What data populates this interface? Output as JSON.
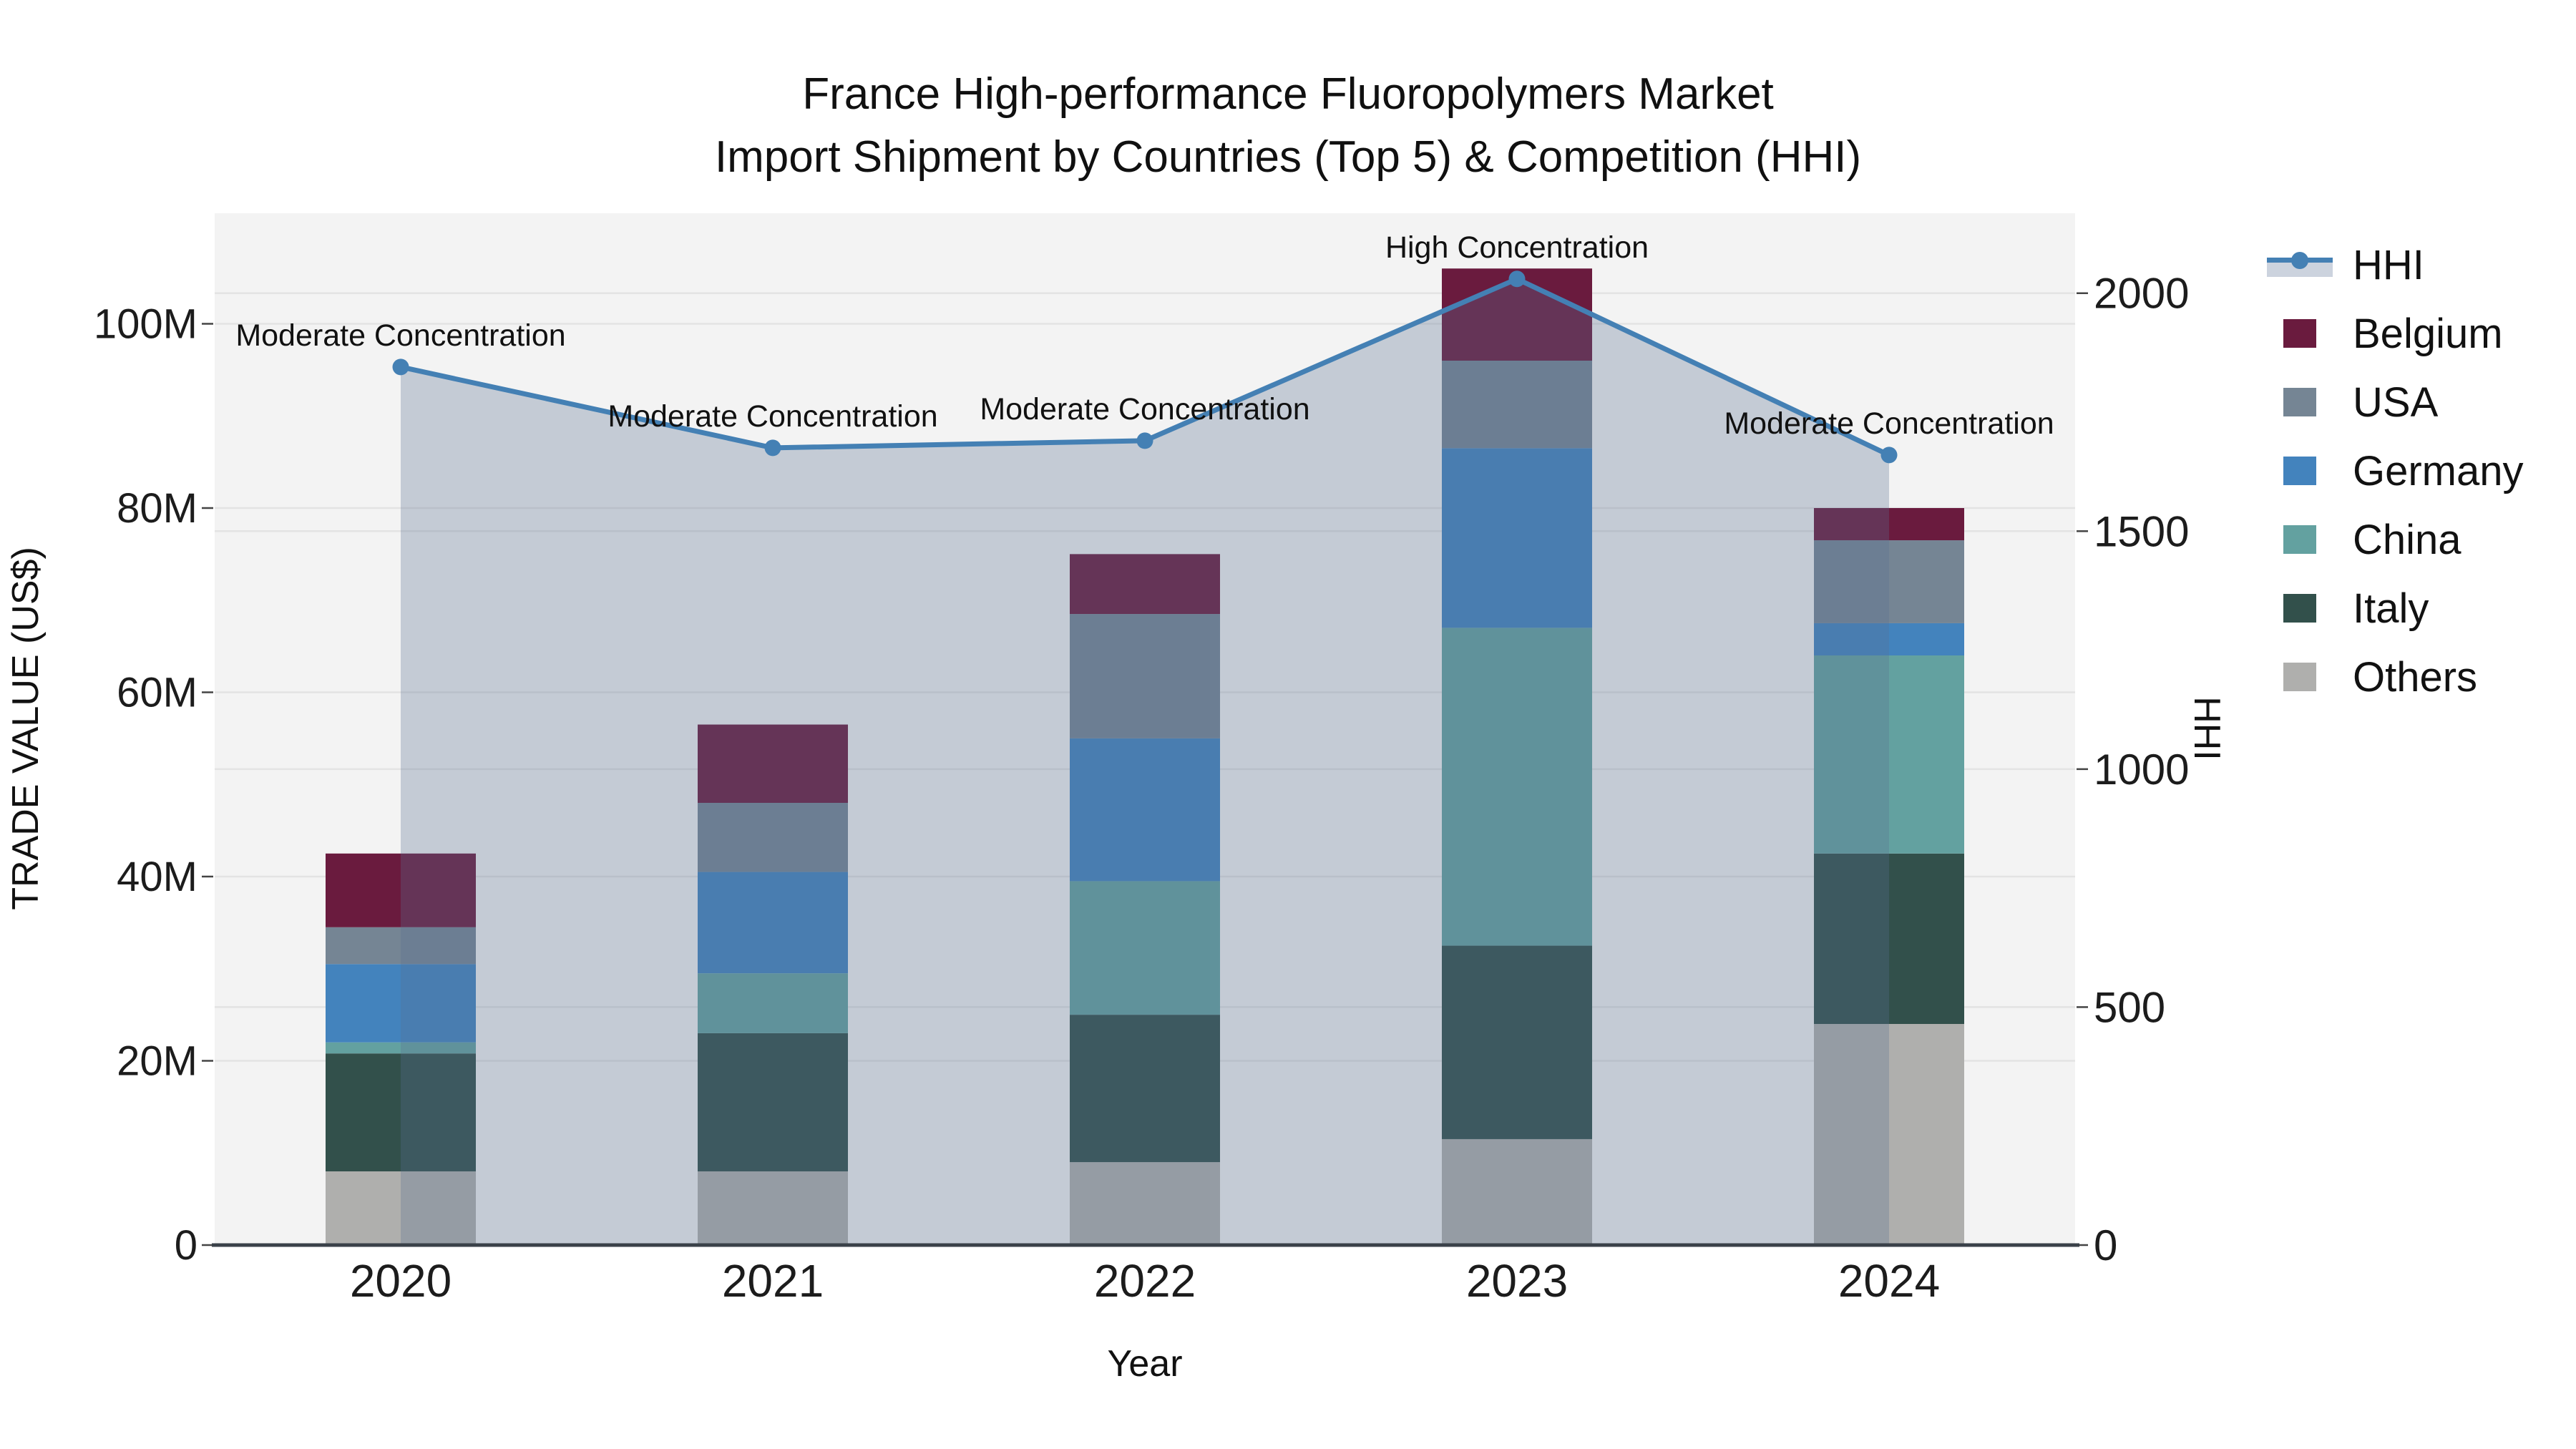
{
  "title": {
    "line1": "France High-performance Fluoropolymers Market",
    "line2": "Import Shipment by Countries (Top 5) & Competition (HHI)"
  },
  "axes": {
    "x": {
      "title": "Year",
      "categories": [
        "2020",
        "2021",
        "2022",
        "2023",
        "2024"
      ]
    },
    "y_left": {
      "title": "TRADE VALUE (US$)",
      "tick_labels": [
        "0",
        "20M",
        "40M",
        "60M",
        "80M",
        "100M"
      ],
      "tick_values": [
        0,
        20,
        40,
        60,
        80,
        100
      ],
      "range_max": 112
    },
    "y_right": {
      "title": "HHI",
      "tick_labels": [
        "0",
        "500",
        "1000",
        "1500",
        "2000"
      ],
      "tick_values": [
        0,
        500,
        1000,
        1500,
        2000
      ],
      "range_max": 2168
    }
  },
  "chart_data": {
    "type": "bar",
    "subtype": "stacked-bar-with-line",
    "categories": [
      "2020",
      "2021",
      "2022",
      "2023",
      "2024"
    ],
    "values_unit": "million US$",
    "series": [
      {
        "name": "Others",
        "color": "#AFAFAD",
        "values": [
          8.0,
          8.0,
          9.0,
          11.5,
          24.0
        ]
      },
      {
        "name": "Italy",
        "color": "#32504B",
        "values": [
          12.8,
          15.0,
          16.0,
          21.0,
          18.5
        ]
      },
      {
        "name": "China",
        "color": "#63A1A0",
        "values": [
          1.2,
          6.5,
          14.5,
          34.5,
          21.5
        ]
      },
      {
        "name": "Germany",
        "color": "#4383BD",
        "values": [
          8.5,
          11.0,
          15.5,
          19.5,
          3.5
        ]
      },
      {
        "name": "USA",
        "color": "#758594",
        "values": [
          4.0,
          7.5,
          13.5,
          9.5,
          9.0
        ]
      },
      {
        "name": "Belgium",
        "color": "#6A1B3E",
        "values": [
          8.0,
          8.5,
          6.5,
          10.0,
          3.5
        ]
      }
    ],
    "bar_totals": [
      42.5,
      56.5,
      75.0,
      106.0,
      80.0
    ],
    "line_series": {
      "name": "HHI",
      "axis": "y_right",
      "color": "#4480B4",
      "fill_color": "rgba(88,112,146,0.30)",
      "values": [
        1845,
        1675,
        1690,
        2030,
        1660
      ]
    },
    "annotations": [
      {
        "x": "2020",
        "text": "Moderate Concentration"
      },
      {
        "x": "2021",
        "text": "Moderate Concentration"
      },
      {
        "x": "2022",
        "text": "Moderate Concentration"
      },
      {
        "x": "2023",
        "text": "High Concentration"
      },
      {
        "x": "2024",
        "text": "Moderate Concentration"
      }
    ],
    "grid": true,
    "legend_position": "right"
  },
  "legend": {
    "items": [
      {
        "label": "HHI",
        "type": "line",
        "color": "#4480B4"
      },
      {
        "label": "Belgium",
        "type": "swatch",
        "color": "#6A1B3E"
      },
      {
        "label": "USA",
        "type": "swatch",
        "color": "#758594"
      },
      {
        "label": "Germany",
        "type": "swatch",
        "color": "#4383BD"
      },
      {
        "label": "China",
        "type": "swatch",
        "color": "#63A1A0"
      },
      {
        "label": "Italy",
        "type": "swatch",
        "color": "#32504B"
      },
      {
        "label": "Others",
        "type": "swatch",
        "color": "#AFAFAD"
      }
    ]
  },
  "style": {
    "plot_bg": "#F3F3F3",
    "gridline": "#E3E3E3",
    "axis_line": "#3A4149",
    "tick_text": "#1C1C1C",
    "annotation_text": "#111111"
  }
}
